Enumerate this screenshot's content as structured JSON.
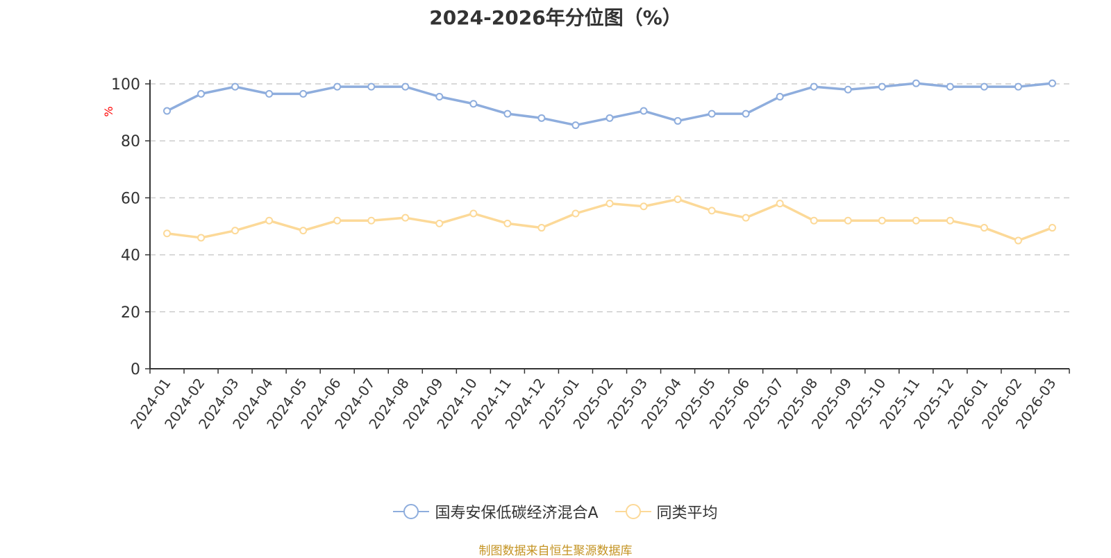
{
  "source_note": "制图数据来自恒生聚源数据库",
  "chart_data": {
    "type": "line",
    "title": "2024-2026年分位图（%）",
    "ylabel": "%",
    "ylabel_color": "#ff0000",
    "ylim": [
      0,
      100
    ],
    "yticks": [
      0,
      20,
      40,
      60,
      80,
      100
    ],
    "grid": true,
    "legend_position": "bottom",
    "categories": [
      "2024-01",
      "2024-02",
      "2024-03",
      "2024-04",
      "2024-05",
      "2024-06",
      "2024-07",
      "2024-08",
      "2024-09",
      "2024-10",
      "2024-11",
      "2024-12",
      "2025-01",
      "2025-02",
      "2025-03",
      "2025-04",
      "2025-05",
      "2025-06",
      "2025-07",
      "2025-08",
      "2025-09",
      "2025-10",
      "2025-11",
      "2025-12",
      "2026-01",
      "2026-02",
      "2026-03"
    ],
    "series": [
      {
        "name": "国寿安保低碳经济混合A",
        "color": "#8eaddd",
        "values": [
          90.5,
          96.5,
          99,
          96.5,
          96.5,
          99,
          99,
          99,
          95.5,
          93,
          89.5,
          88,
          85.5,
          88,
          90.5,
          87,
          89.5,
          89.5,
          95.5,
          99,
          98,
          99,
          100.2,
          99,
          99,
          99,
          100.2
        ]
      },
      {
        "name": "同类平均",
        "color": "#fcd998",
        "values": [
          47.5,
          46,
          48.5,
          52,
          48.5,
          52,
          52,
          53,
          51,
          54.5,
          51,
          49.5,
          54.5,
          58,
          57,
          59.5,
          55.5,
          53,
          58,
          52,
          52,
          52,
          52,
          52,
          49.5,
          45,
          49.5
        ]
      }
    ]
  }
}
